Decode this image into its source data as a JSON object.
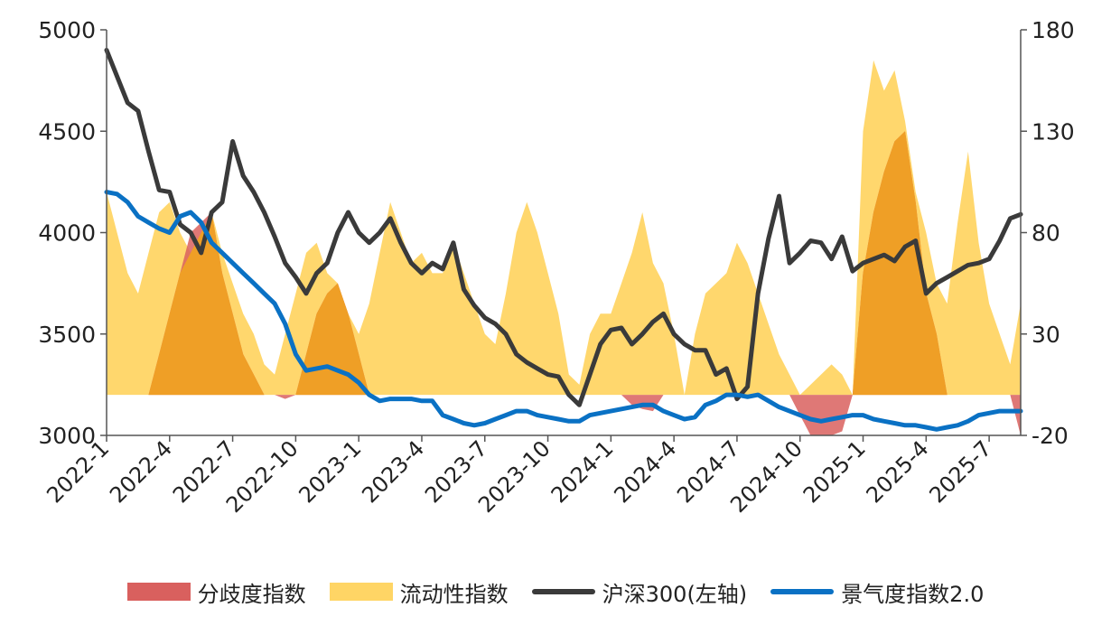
{
  "chart_data": {
    "type": "line",
    "x_ticks": [
      "2022-1",
      "2022-4",
      "2022-7",
      "2022-10",
      "2023-1",
      "2023-4",
      "2023-7",
      "2023-10",
      "2024-1",
      "2024-4",
      "2024-7",
      "2024-10",
      "2025-1",
      "2025-4",
      "2025-7"
    ],
    "y_left": {
      "min": 3000,
      "max": 5000,
      "ticks": [
        3000,
        3500,
        4000,
        4500,
        5000
      ]
    },
    "y_right": {
      "min": -20,
      "max": 180,
      "ticks": [
        -20,
        30,
        80,
        130,
        180
      ]
    },
    "grid": false,
    "legend_position": "bottom",
    "x_months": [
      0,
      0.5,
      1,
      1.5,
      2,
      2.5,
      3,
      3.5,
      4,
      4.5,
      5,
      5.5,
      6,
      6.5,
      7,
      7.5,
      8,
      8.5,
      9,
      9.5,
      10,
      10.5,
      11,
      11.5,
      12,
      12.5,
      13,
      13.5,
      14,
      14.5,
      15,
      15.5,
      16,
      16.5,
      17,
      17.5,
      18,
      18.5,
      19,
      19.5,
      20,
      20.5,
      21,
      21.5,
      22,
      22.5,
      23,
      23.5,
      24,
      24.5,
      25,
      25.5,
      26,
      26.5,
      27,
      27.5,
      28,
      28.5,
      29,
      29.5,
      30,
      30.5,
      31,
      31.5,
      32,
      32.5,
      33,
      33.5,
      34,
      34.5,
      35,
      35.5,
      36,
      36.5,
      37,
      37.5,
      38,
      38.5,
      39,
      39.5,
      40,
      40.5,
      41,
      41.5,
      42,
      42.5,
      43,
      43.5
    ],
    "series": [
      {
        "name": "分歧度指数",
        "axis": "right",
        "style": "area",
        "color": "#d9605e",
        "values": [
          0,
          0,
          0,
          0,
          0,
          20,
          40,
          60,
          80,
          85,
          90,
          60,
          40,
          20,
          10,
          0,
          0,
          -2,
          0,
          20,
          40,
          50,
          55,
          40,
          20,
          0,
          0,
          0,
          0,
          0,
          0,
          0,
          0,
          0,
          0,
          0,
          0,
          0,
          0,
          0,
          0,
          0,
          0,
          0,
          0,
          0,
          0,
          0,
          0,
          0,
          -5,
          -7,
          -8,
          0,
          0,
          0,
          0,
          0,
          0,
          0,
          0,
          0,
          0,
          0,
          0,
          0,
          -10,
          -20,
          -20,
          -20,
          -18,
          0,
          60,
          90,
          110,
          125,
          130,
          95,
          50,
          30,
          0,
          0,
          0,
          0,
          0,
          0,
          0,
          -20
        ]
      },
      {
        "name": "流动性指数",
        "axis": "right",
        "style": "area",
        "color": "#ffd565",
        "values": [
          100,
          80,
          60,
          50,
          70,
          90,
          95,
          80,
          70,
          80,
          90,
          70,
          55,
          40,
          30,
          15,
          10,
          30,
          50,
          70,
          75,
          60,
          55,
          40,
          30,
          45,
          70,
          95,
          80,
          65,
          70,
          60,
          60,
          75,
          60,
          45,
          30,
          25,
          50,
          80,
          95,
          80,
          60,
          40,
          10,
          5,
          30,
          40,
          40,
          55,
          70,
          90,
          65,
          55,
          30,
          0,
          30,
          50,
          55,
          60,
          75,
          65,
          50,
          35,
          20,
          10,
          0,
          5,
          10,
          15,
          10,
          0,
          130,
          165,
          150,
          160,
          135,
          100,
          80,
          55,
          45,
          85,
          120,
          75,
          45,
          30,
          15,
          45
        ]
      },
      {
        "name": "沪深300(左轴)",
        "axis": "left",
        "style": "line",
        "color": "#3a3a3a",
        "values": [
          4900,
          4770,
          4640,
          4600,
          4400,
          4210,
          4200,
          4040,
          4000,
          3900,
          4100,
          4150,
          4450,
          4280,
          4200,
          4100,
          3980,
          3850,
          3780,
          3700,
          3800,
          3850,
          4000,
          4100,
          4000,
          3950,
          4000,
          4070,
          3950,
          3850,
          3800,
          3850,
          3820,
          3950,
          3720,
          3640,
          3580,
          3550,
          3500,
          3400,
          3360,
          3330,
          3300,
          3290,
          3200,
          3150,
          3300,
          3450,
          3520,
          3530,
          3450,
          3500,
          3560,
          3600,
          3500,
          3450,
          3420,
          3420,
          3300,
          3330,
          3180,
          3240,
          3700,
          3970,
          4180,
          3850,
          3900,
          3960,
          3950,
          3870,
          3980,
          3810,
          3850,
          3870,
          3890,
          3860,
          3930,
          3960,
          3700,
          3750,
          3780,
          3810,
          3840,
          3850,
          3870,
          3960,
          4070,
          4090
        ]
      },
      {
        "name": "景气度指数2.0",
        "axis": "right",
        "style": "line",
        "color": "#0a71c4",
        "values": [
          100,
          99,
          95,
          88,
          85,
          82,
          80,
          88,
          90,
          85,
          75,
          70,
          65,
          60,
          55,
          50,
          45,
          35,
          20,
          12,
          13,
          14,
          12,
          10,
          6,
          0,
          -3,
          -2,
          -2,
          -2,
          -3,
          -3,
          -10,
          -12,
          -14,
          -15,
          -14,
          -12,
          -10,
          -8,
          -8,
          -10,
          -11,
          -12,
          -13,
          -13,
          -10,
          -9,
          -8,
          -7,
          -6,
          -5,
          -5,
          -8,
          -10,
          -12,
          -11,
          -5,
          -3,
          0,
          0,
          -1,
          0,
          -3,
          -6,
          -8,
          -10,
          -12,
          -13,
          -12,
          -11,
          -10,
          -10,
          -12,
          -13,
          -14,
          -15,
          -15,
          -16,
          -17,
          -16,
          -15,
          -13,
          -10,
          -9,
          -8,
          -8,
          -8
        ]
      }
    ]
  }
}
